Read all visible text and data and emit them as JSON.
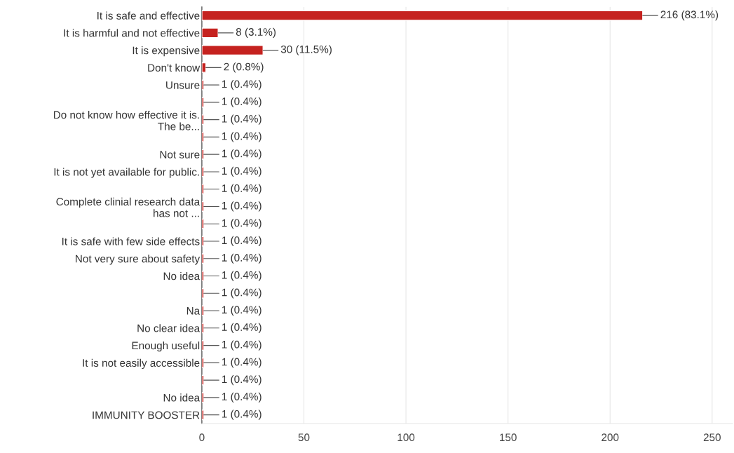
{
  "chart_data": {
    "type": "bar",
    "orientation": "horizontal",
    "color": "#c5221f",
    "categories": [
      "It is safe and effective",
      "It is harmful and not effective",
      "It is expensive",
      "Don't know",
      "Unsure",
      null,
      "Do not know how effective it is.\nThe be...",
      null,
      "Not sure",
      "It is not yet available for public.",
      null,
      "Complete clinial research data\nhas not ...",
      null,
      "It is safe with few side effects",
      "Not very sure about safety",
      "No idea",
      null,
      "Na",
      "No clear idea",
      "Enough useful",
      "It is not easily accessible",
      null,
      "No idea",
      "IMMUNITY BOOSTER"
    ],
    "values": [
      216,
      8,
      30,
      2,
      1,
      1,
      1,
      1,
      1,
      1,
      1,
      1,
      1,
      1,
      1,
      1,
      1,
      1,
      1,
      1,
      1,
      1,
      1,
      1
    ],
    "value_labels": [
      "216 (83.1%)",
      "8 (3.1%)",
      "30 (11.5%)",
      "2 (0.8%)",
      "1 (0.4%)",
      "1 (0.4%)",
      "1 (0.4%)",
      "1 (0.4%)",
      "1 (0.4%)",
      "1 (0.4%)",
      "1 (0.4%)",
      "1 (0.4%)",
      "1 (0.4%)",
      "1 (0.4%)",
      "1 (0.4%)",
      "1 (0.4%)",
      "1 (0.4%)",
      "1 (0.4%)",
      "1 (0.4%)",
      "1 (0.4%)",
      "1 (0.4%)",
      "1 (0.4%)",
      "1 (0.4%)",
      "1 (0.4%)"
    ],
    "xlim": [
      0,
      260
    ],
    "xticks": [
      0,
      50,
      100,
      150,
      200,
      250
    ],
    "grid": "x"
  }
}
